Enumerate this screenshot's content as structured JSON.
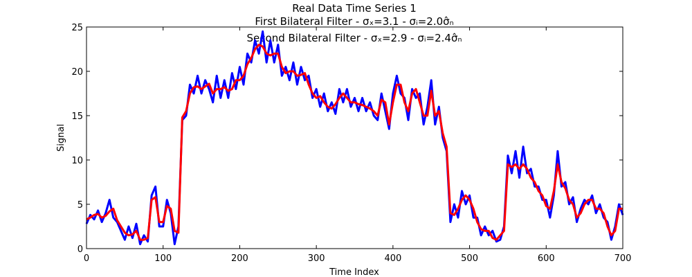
{
  "chart_data": {
    "type": "line",
    "title": "Real Data Time Series 1",
    "subtitles": [
      "First Bilateral Filter - σₓ=3.1 - σᵢ=2.0σ̂ₙ",
      "Second Bilateral Filter - σₓ=2.9 - σᵢ=2.4σ̂ₙ"
    ],
    "x_label": "Time Index",
    "y_label": "Signal",
    "xlim": [
      0,
      700
    ],
    "xticks": [
      0,
      100,
      200,
      300,
      400,
      500,
      600,
      700
    ],
    "ylim": [
      0,
      25
    ],
    "yticks": [
      0,
      5,
      10,
      15,
      20,
      25
    ],
    "grid": false,
    "x": [
      0,
      5,
      10,
      15,
      20,
      25,
      30,
      35,
      40,
      45,
      50,
      55,
      60,
      65,
      70,
      75,
      80,
      85,
      90,
      95,
      100,
      105,
      110,
      115,
      120,
      125,
      130,
      135,
      140,
      145,
      150,
      155,
      160,
      165,
      170,
      175,
      180,
      185,
      190,
      195,
      200,
      205,
      210,
      215,
      220,
      225,
      230,
      235,
      240,
      245,
      250,
      255,
      260,
      265,
      270,
      275,
      280,
      285,
      290,
      295,
      300,
      305,
      310,
      315,
      320,
      325,
      330,
      335,
      340,
      345,
      350,
      355,
      360,
      365,
      370,
      375,
      380,
      385,
      390,
      395,
      400,
      405,
      410,
      415,
      420,
      425,
      430,
      435,
      440,
      445,
      450,
      455,
      460,
      465,
      470,
      475,
      480,
      485,
      490,
      495,
      500,
      505,
      510,
      515,
      520,
      525,
      530,
      535,
      540,
      545,
      550,
      555,
      560,
      565,
      570,
      575,
      580,
      585,
      590,
      595,
      600,
      605,
      610,
      615,
      620,
      625,
      630,
      635,
      640,
      645,
      650,
      655,
      660,
      665,
      670,
      675,
      680,
      685,
      690,
      695,
      700
    ],
    "series": [
      {
        "color": "#0000ff",
        "values": [
          2.8,
          3.8,
          3.3,
          4.3,
          3.0,
          4.0,
          5.5,
          3.5,
          3.0,
          2.0,
          1.0,
          2.5,
          1.2,
          2.8,
          0.5,
          1.5,
          0.8,
          6.0,
          7.0,
          2.5,
          2.5,
          5.5,
          4.0,
          0.5,
          2.5,
          14.5,
          15.0,
          18.5,
          17.5,
          19.5,
          17.5,
          19.0,
          18.0,
          16.5,
          19.5,
          17.0,
          19.0,
          17.0,
          19.8,
          18.0,
          20.5,
          18.5,
          22.0,
          21.0,
          23.5,
          22.0,
          24.5,
          21.0,
          23.5,
          21.0,
          23.0,
          19.5,
          20.5,
          19.0,
          21.0,
          18.5,
          20.5,
          19.0,
          19.5,
          17.0,
          18.0,
          16.0,
          17.5,
          15.5,
          16.5,
          15.2,
          18.0,
          16.5,
          18.0,
          16.0,
          17.0,
          15.5,
          17.0,
          15.5,
          16.5,
          15.0,
          14.5,
          17.5,
          15.5,
          13.5,
          17.5,
          19.5,
          17.5,
          17.0,
          14.5,
          18.0,
          17.0,
          17.5,
          14.0,
          16.0,
          19.0,
          14.0,
          16.0,
          12.5,
          11.0,
          3.0,
          5.0,
          3.5,
          6.5,
          5.0,
          6.0,
          3.5,
          3.5,
          1.5,
          2.5,
          1.5,
          2.0,
          0.8,
          1.0,
          2.5,
          10.5,
          8.5,
          11.0,
          8.0,
          11.5,
          8.5,
          9.0,
          7.0,
          7.0,
          5.5,
          5.5,
          3.5,
          6.0,
          11.0,
          7.0,
          7.5,
          5.0,
          5.8,
          3.0,
          4.5,
          5.5,
          5.0,
          6.0,
          4.0,
          5.0,
          3.5,
          3.0,
          1.0,
          2.5,
          5.0,
          3.8
        ]
      },
      {
        "color": "#ff0000",
        "values": [
          3.3,
          3.5,
          3.8,
          3.9,
          3.5,
          3.7,
          4.2,
          4.5,
          3.2,
          2.5,
          1.8,
          1.5,
          1.6,
          2.0,
          1.0,
          1.0,
          1.2,
          5.5,
          5.8,
          3.0,
          3.0,
          4.8,
          4.5,
          2.0,
          1.8,
          14.8,
          15.5,
          17.5,
          18.2,
          18.3,
          18.0,
          18.3,
          18.6,
          17.5,
          18.0,
          18.0,
          18.2,
          17.8,
          18.0,
          19.0,
          19.0,
          19.5,
          20.8,
          21.5,
          22.5,
          23.0,
          22.8,
          22.0,
          21.8,
          22.0,
          22.0,
          20.5,
          19.8,
          20.0,
          20.0,
          19.5,
          19.6,
          19.8,
          18.5,
          17.5,
          17.0,
          17.2,
          16.5,
          16.0,
          15.8,
          16.3,
          17.0,
          17.5,
          17.0,
          16.5,
          16.5,
          16.3,
          16.2,
          16.0,
          15.8,
          15.5,
          15.0,
          16.8,
          16.5,
          14.0,
          16.5,
          18.5,
          18.5,
          16.5,
          15.5,
          17.5,
          18.0,
          16.5,
          15.0,
          15.0,
          17.8,
          15.0,
          15.5,
          13.0,
          11.5,
          4.0,
          3.8,
          4.5,
          5.5,
          6.0,
          5.5,
          4.5,
          3.0,
          2.2,
          2.0,
          2.0,
          1.2,
          1.0,
          1.5,
          2.0,
          9.5,
          9.2,
          9.5,
          9.0,
          9.5,
          9.0,
          8.0,
          7.5,
          6.5,
          6.0,
          4.8,
          4.5,
          6.5,
          9.5,
          7.5,
          6.8,
          5.5,
          5.0,
          3.5,
          4.0,
          5.0,
          5.5,
          5.5,
          4.5,
          4.5,
          4.0,
          2.5,
          1.5,
          2.0,
          4.5,
          4.5
        ]
      }
    ]
  }
}
